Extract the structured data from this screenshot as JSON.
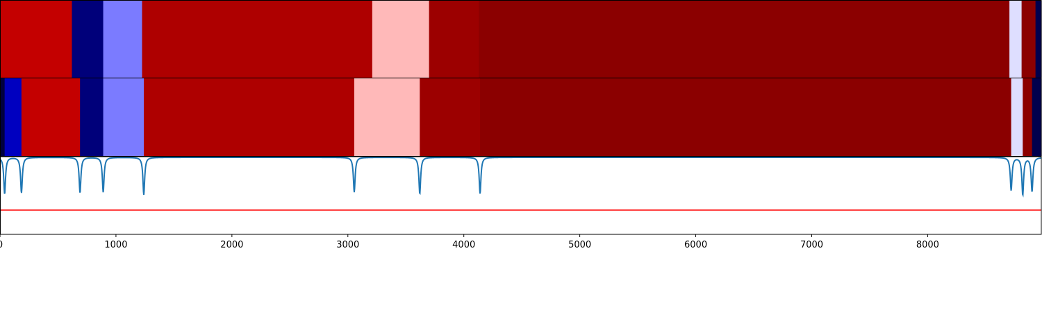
{
  "chart_data": {
    "type": "heatmap",
    "title": "",
    "xlabel": "",
    "ylabel": "",
    "xlim": [
      0,
      8980
    ],
    "x_ticks": [
      0,
      1000,
      2000,
      3000,
      4000,
      5000,
      6000,
      7000,
      8000
    ],
    "x_tick_labels": [
      "0",
      "1000",
      "2000",
      "3000",
      "4000",
      "5000",
      "6000",
      "7000",
      "8000"
    ],
    "tracks": [
      {
        "segments": [
          {
            "start": 0,
            "end": 620,
            "color": "#c40000"
          },
          {
            "start": 620,
            "end": 890,
            "color": "#00007a"
          },
          {
            "start": 890,
            "end": 1225,
            "color": "#7b7bff"
          },
          {
            "start": 1225,
            "end": 3210,
            "color": "#ae0000"
          },
          {
            "start": 3210,
            "end": 3700,
            "color": "#ffb9b9"
          },
          {
            "start": 3700,
            "end": 4130,
            "color": "#9c0000"
          },
          {
            "start": 4130,
            "end": 8705,
            "color": "#8b0000"
          },
          {
            "start": 8705,
            "end": 8810,
            "color": "#dedeff"
          },
          {
            "start": 8810,
            "end": 8930,
            "color": "#8b0000"
          },
          {
            "start": 8930,
            "end": 8980,
            "color": "#00004d"
          }
        ]
      },
      {
        "segments": [
          {
            "start": 0,
            "end": 40,
            "color": "#000040"
          },
          {
            "start": 40,
            "end": 185,
            "color": "#0000c0"
          },
          {
            "start": 185,
            "end": 690,
            "color": "#c40000"
          },
          {
            "start": 690,
            "end": 890,
            "color": "#00007a"
          },
          {
            "start": 890,
            "end": 1240,
            "color": "#7b7bff"
          },
          {
            "start": 1240,
            "end": 3055,
            "color": "#ae0000"
          },
          {
            "start": 3055,
            "end": 3620,
            "color": "#ffb9b9"
          },
          {
            "start": 3620,
            "end": 4140,
            "color": "#9c0000"
          },
          {
            "start": 4140,
            "end": 8720,
            "color": "#8b0000"
          },
          {
            "start": 8720,
            "end": 8820,
            "color": "#dedeff"
          },
          {
            "start": 8820,
            "end": 8900,
            "color": "#8b0000"
          },
          {
            "start": 8900,
            "end": 8980,
            "color": "#00004d"
          }
        ]
      }
    ],
    "signal": {
      "color": "#1f77b4",
      "baseline": 0,
      "ylim": [
        -1.0,
        0.02
      ],
      "dips": [
        {
          "x": 40,
          "depth": 0.98
        },
        {
          "x": 185,
          "depth": 0.95
        },
        {
          "x": 690,
          "depth": 0.95
        },
        {
          "x": 890,
          "depth": 0.93
        },
        {
          "x": 1240,
          "depth": 1.0
        },
        {
          "x": 3055,
          "depth": 0.93
        },
        {
          "x": 3620,
          "depth": 0.98
        },
        {
          "x": 4140,
          "depth": 0.97
        },
        {
          "x": 8720,
          "depth": 0.88
        },
        {
          "x": 8820,
          "depth": 1.0
        },
        {
          "x": 8900,
          "depth": 0.91
        }
      ]
    },
    "threshold": {
      "value": -1.4,
      "color": "#ff0000"
    }
  }
}
